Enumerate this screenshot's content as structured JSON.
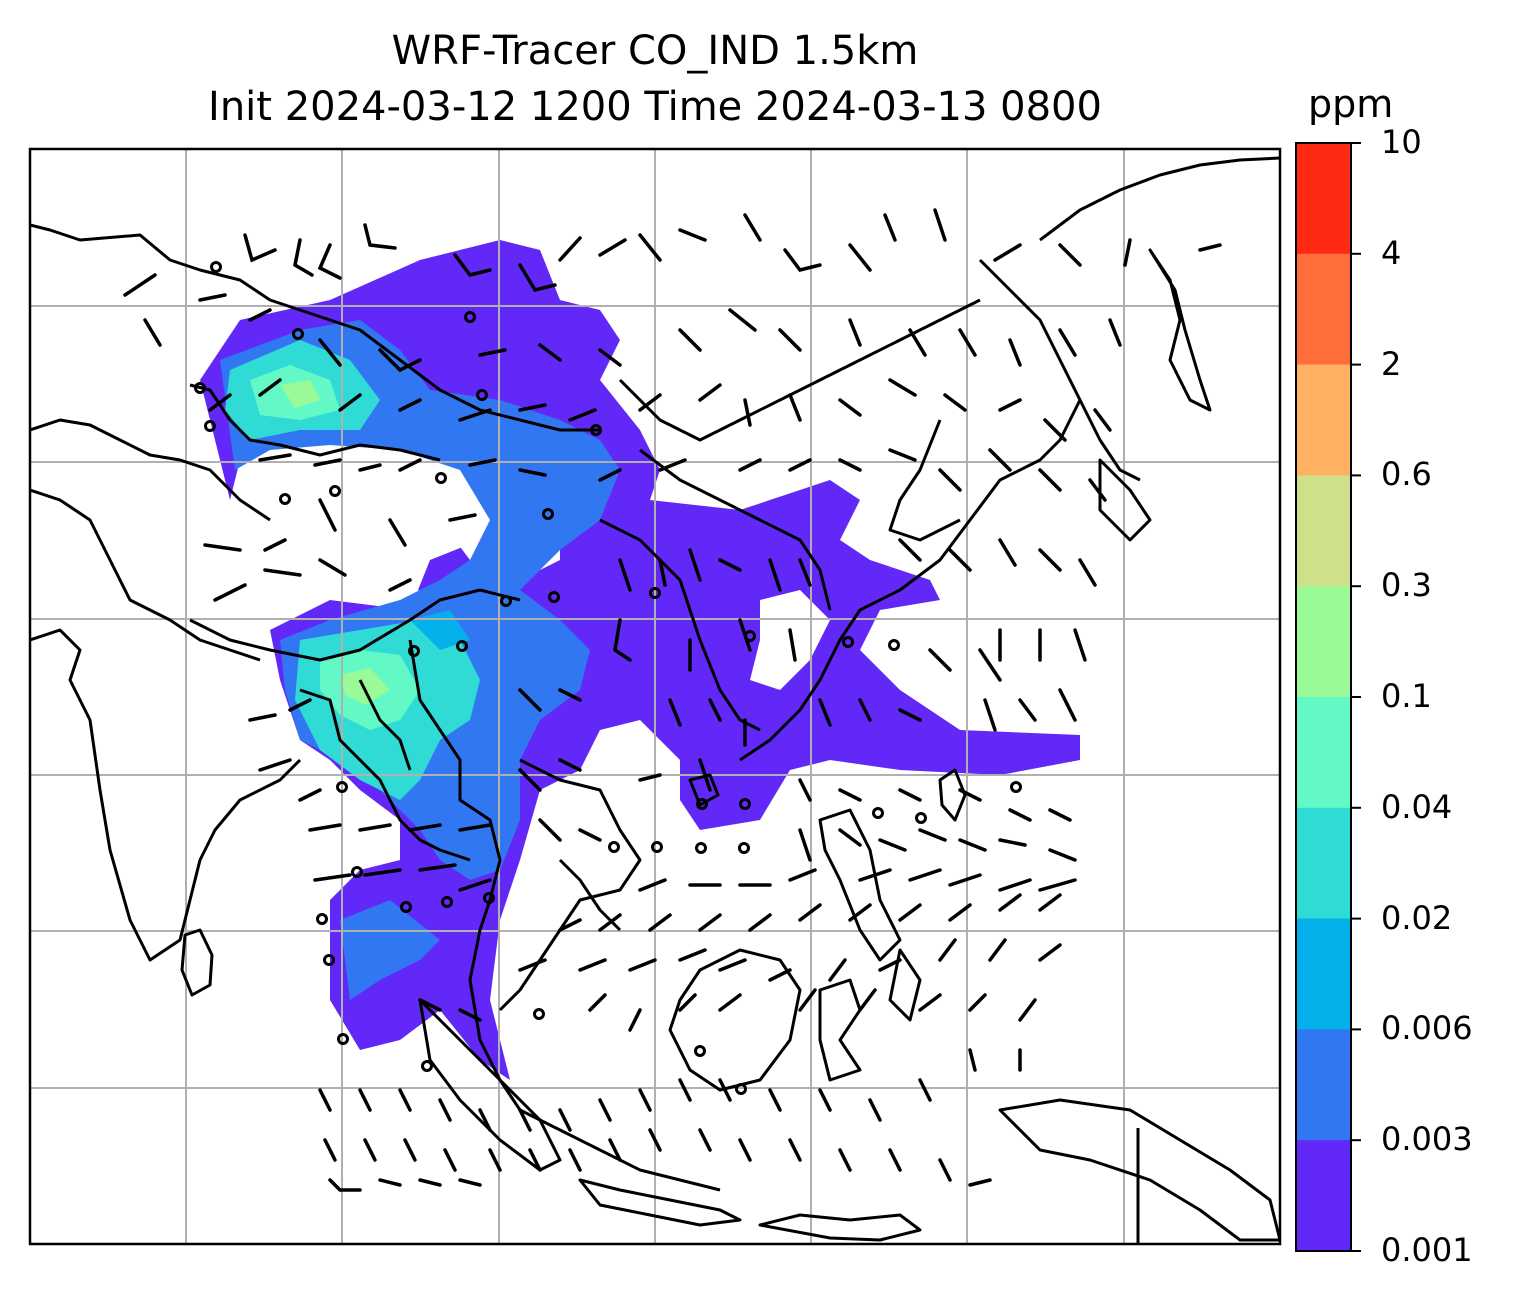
{
  "title": {
    "line1": "WRF-Tracer CO_IND 1.5km",
    "line2": "Init 2024-03-12 1200 Time 2024-03-13 0800"
  },
  "colorbar": {
    "unit": "ppm",
    "ticks": [
      "10",
      "4",
      "2",
      "0.6",
      "0.3",
      "0.1",
      "0.04",
      "0.02",
      "0.006",
      "0.003",
      "0.001"
    ],
    "colors": [
      "#ff2a14",
      "#ff6d3a",
      "#ffb061",
      "#cfe08a",
      "#9bfa98",
      "#63f9c6",
      "#30dbd6",
      "#04b0ea",
      "#3177f2",
      "#6228f7"
    ]
  },
  "map": {
    "gridlines": true,
    "gridline_color": "#b0b0b0",
    "coastline_color": "#000000",
    "wind_barb_color": "#000000"
  }
}
